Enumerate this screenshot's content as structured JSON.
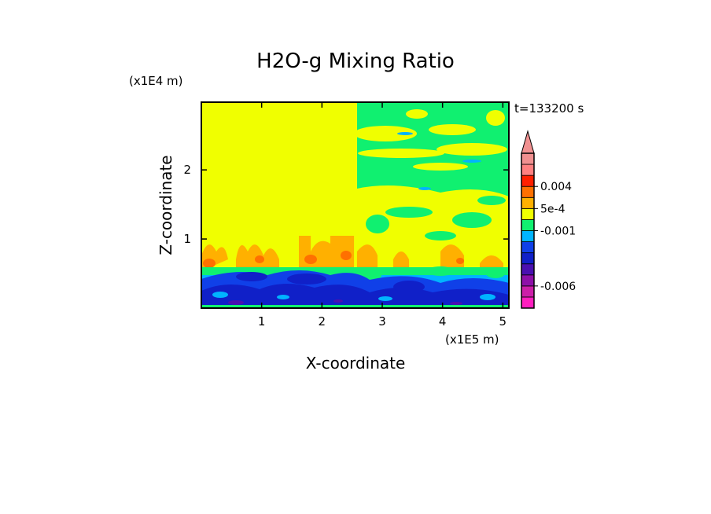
{
  "chart_data": {
    "type": "heatmap",
    "title": "H2O-g Mixing Ratio",
    "xlabel": "X-coordinate",
    "ylabel": "Z-coordinate",
    "x_scale_label": "(x1E5 m)",
    "y_scale_label": "(x1E4 m)",
    "time_label": "t=133200 s",
    "x_ticks": [
      "1",
      "2",
      "3",
      "4",
      "5"
    ],
    "x_tick_values": [
      1,
      2,
      3,
      4,
      5
    ],
    "y_ticks": [
      "1",
      "2"
    ],
    "y_tick_values": [
      1,
      2
    ],
    "xlim": [
      0,
      5.1
    ],
    "ylim": [
      0,
      2.98
    ],
    "colorbar": {
      "colors": [
        "#ff1fbf",
        "#cc1fa8",
        "#8e10a8",
        "#4a10b0",
        "#1020c8",
        "#1040e8",
        "#00b4ff",
        "#10f070",
        "#f0ff00",
        "#ffb000",
        "#ff7000",
        "#ff2000",
        "#ff8080",
        "#f09090"
      ],
      "labels": [
        "-0.006",
        "-0.001",
        "5e-4",
        "0.004"
      ],
      "extend": "max"
    },
    "regions": [
      {
        "name": "upper-left-uniform",
        "x": [
          0,
          2.6
        ],
        "z": [
          0.9,
          2.98
        ],
        "color": "#f0ff00"
      },
      {
        "name": "upper-right-mixed",
        "x": [
          2.6,
          5.1
        ],
        "z": [
          1.4,
          2.98
        ],
        "color": "#10f070"
      },
      {
        "name": "mid-band",
        "x": [
          0,
          5.1
        ],
        "z": [
          0.55,
          1.0
        ],
        "color": "#ffb000"
      },
      {
        "name": "boundary-layer",
        "x": [
          0,
          5.1
        ],
        "z": [
          0,
          0.55
        ],
        "color": "#1020c8"
      }
    ]
  }
}
